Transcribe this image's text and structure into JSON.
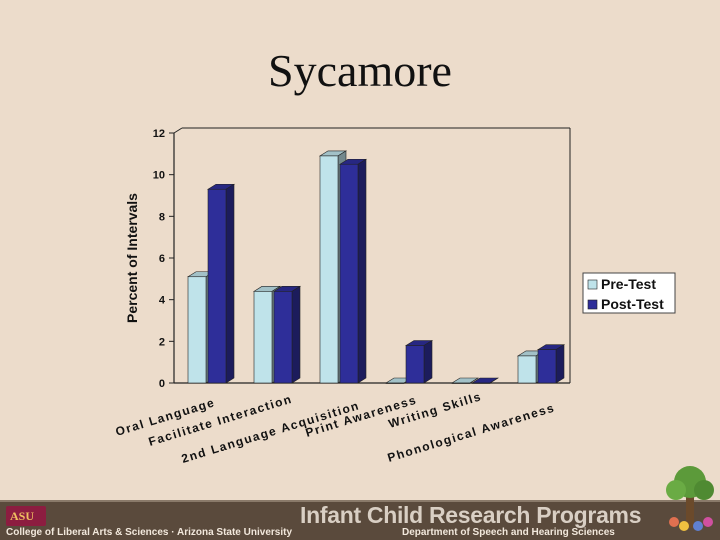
{
  "slide": {
    "title": "Sycamore"
  },
  "chart_data": {
    "type": "bar",
    "categories": [
      "Oral Language",
      "Facilitate Interaction",
      "2nd Language Acquisition",
      "Print Awareness",
      "Writing Skills",
      "Phonological Awareness"
    ],
    "series": [
      {
        "name": "Pre-Test",
        "values": [
          5.1,
          4.4,
          10.9,
          0,
          0,
          1.3
        ]
      },
      {
        "name": "Post-Test",
        "values": [
          9.3,
          4.4,
          10.5,
          1.8,
          0,
          1.6
        ]
      }
    ],
    "ylabel": "Percent of Intervals",
    "xlabel": "",
    "ylim": [
      0,
      12
    ],
    "yticks": [
      0,
      2,
      4,
      6,
      8,
      10,
      12
    ],
    "grid": false,
    "legend_position": "right",
    "colors": {
      "pre": "#bfe3ea",
      "post": "#2e2e99",
      "background": "#ecdccb"
    }
  },
  "footer": {
    "left": "College of Liberal Arts & Sciences · Arizona State University",
    "title": "Infant Child Research Programs",
    "department": "Department of Speech and Hearing Sciences",
    "logo": "ASU"
  }
}
